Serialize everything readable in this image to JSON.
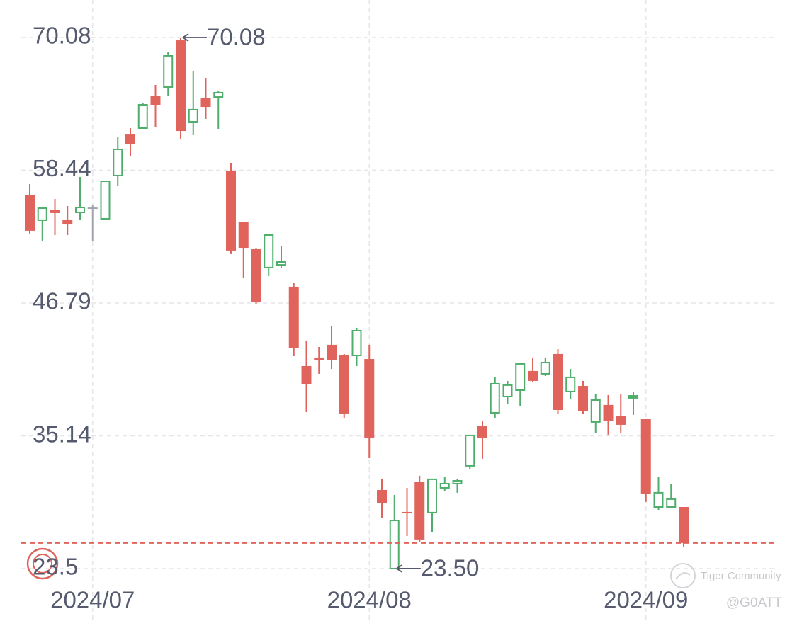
{
  "chart_data": {
    "type": "candlestick",
    "categories": [
      null,
      null,
      null,
      null,
      null,
      "2024/07",
      null,
      null,
      null,
      null,
      null,
      null,
      null,
      null,
      null,
      null,
      null,
      null,
      null,
      null,
      null,
      null,
      null,
      null,
      null,
      null,
      null,
      "2024/08",
      null,
      null,
      null,
      null,
      null,
      null,
      null,
      null,
      null,
      null,
      null,
      null,
      null,
      null,
      null,
      null,
      null,
      null,
      null,
      null,
      null,
      "2024/09",
      null,
      null,
      null
    ],
    "open": [
      56.23,
      54.06,
      54.93,
      54.12,
      54.74,
      55.17,
      54.18,
      57.97,
      61.63,
      62.13,
      64.93,
      65.73,
      69.83,
      62.69,
      64.74,
      64.86,
      58.4,
      53.93,
      51.57,
      49.9,
      50.14,
      48.22,
      41.26,
      42.01,
      43.13,
      42.19,
      42.19,
      41.88,
      30.39,
      23.5,
      28.47,
      31.08,
      28.41,
      30.58,
      30.95,
      32.51,
      35.98,
      37.16,
      38.59,
      39.15,
      40.83,
      40.58,
      42.32,
      39.03,
      39.52,
      36.36,
      37.85,
      36.85,
      38.47,
      36.6,
      28.9,
      28.9,
      28.9
    ],
    "high": [
      57.22,
      55.24,
      55.92,
      55.3,
      57.85,
      55.36,
      57.47,
      61.32,
      62.13,
      64.3,
      65.92,
      68.78,
      70.08,
      67.16,
      66.54,
      65.36,
      59.09,
      53.93,
      51.63,
      52.81,
      51.82,
      48.59,
      43.5,
      42.94,
      44.74,
      42.32,
      44.62,
      43.13,
      31.39,
      29.96,
      30.58,
      31.64,
      31.39,
      31.57,
      31.33,
      35.24,
      36.48,
      40.27,
      39.96,
      41.51,
      42.01,
      41.95,
      42.75,
      41.01,
      39.96,
      38.78,
      38.72,
      38.78,
      39.03,
      36.6,
      31.51,
      30.95,
      28.9
    ],
    "low": [
      52.88,
      52.26,
      52.75,
      52.75,
      54.06,
      52.19,
      54.12,
      57.1,
      59.65,
      62.07,
      62.19,
      64.93,
      61.14,
      61.57,
      62.94,
      62.07,
      51.08,
      48.96,
      46.67,
      49.15,
      49.9,
      42.13,
      37.22,
      40.58,
      41.01,
      36.67,
      41.26,
      33.19,
      27.97,
      23.5,
      26.36,
      25.8,
      26.73,
      30.33,
      30.15,
      32.19,
      33.13,
      36.73,
      37.97,
      37.72,
      39.83,
      40.39,
      37.04,
      38.34,
      37.1,
      35.36,
      35.24,
      35.42,
      36.98,
      29.34,
      28.65,
      28.78,
      25.36
    ],
    "close": [
      53.13,
      55.11,
      54.68,
      53.68,
      55.17,
      55.17,
      57.47,
      60.27,
      60.7,
      64.18,
      64.18,
      68.47,
      61.88,
      63.75,
      63.99,
      65.24,
      51.39,
      51.63,
      46.85,
      52.75,
      50.39,
      42.82,
      39.65,
      41.76,
      41.76,
      37.1,
      44.37,
      34.93,
      29.21,
      27.72,
      28.34,
      26.05,
      31.33,
      30.95,
      31.2,
      35.18,
      34.93,
      39.71,
      39.59,
      41.45,
      39.96,
      41.57,
      37.41,
      40.27,
      37.29,
      38.28,
      36.48,
      36.11,
      38.65,
      30.02,
      30.15,
      29.59,
      25.74
    ],
    "up_color": "#4fae6c",
    "down_color": "#e0645c",
    "flat_color": "#a3a3ad",
    "ylim": [
      22.0,
      71.5
    ],
    "yticks": [
      70.08,
      58.44,
      46.79,
      35.14,
      23.5
    ],
    "grid": true,
    "high_label": "70.08",
    "low_label": "23.50",
    "watermark": "Tiger Community",
    "user": "@G0ATT"
  }
}
